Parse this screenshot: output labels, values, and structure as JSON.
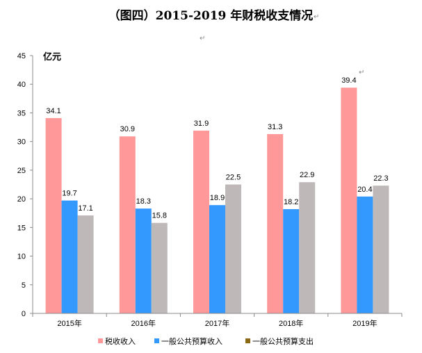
{
  "title": "（图四）2015-2019 年财税收支情况",
  "unit": "亿元",
  "chart_data": {
    "type": "bar",
    "categories": [
      "2015年",
      "2016年",
      "2017年",
      "2018年",
      "2019年"
    ],
    "series": [
      {
        "name": "税收收入",
        "values": [
          34.1,
          30.9,
          31.9,
          31.3,
          39.4
        ],
        "color": "#FF9999"
      },
      {
        "name": "一般公共预算收入",
        "values": [
          19.7,
          18.3,
          18.9,
          18.2,
          20.4
        ],
        "color": "#3399FF"
      },
      {
        "name": "一般公共预算支出",
        "values": [
          17.1,
          15.8,
          22.5,
          22.9,
          22.3
        ],
        "color": "#BFB8B8",
        "legend_color": "#8B6914"
      }
    ],
    "ylim": [
      0,
      45
    ],
    "yticks": [
      0,
      5,
      10,
      15,
      20,
      25,
      30,
      35,
      40,
      45
    ],
    "ylabel": "亿元",
    "xlabel": "",
    "grid": false,
    "legend_position": "bottom"
  }
}
